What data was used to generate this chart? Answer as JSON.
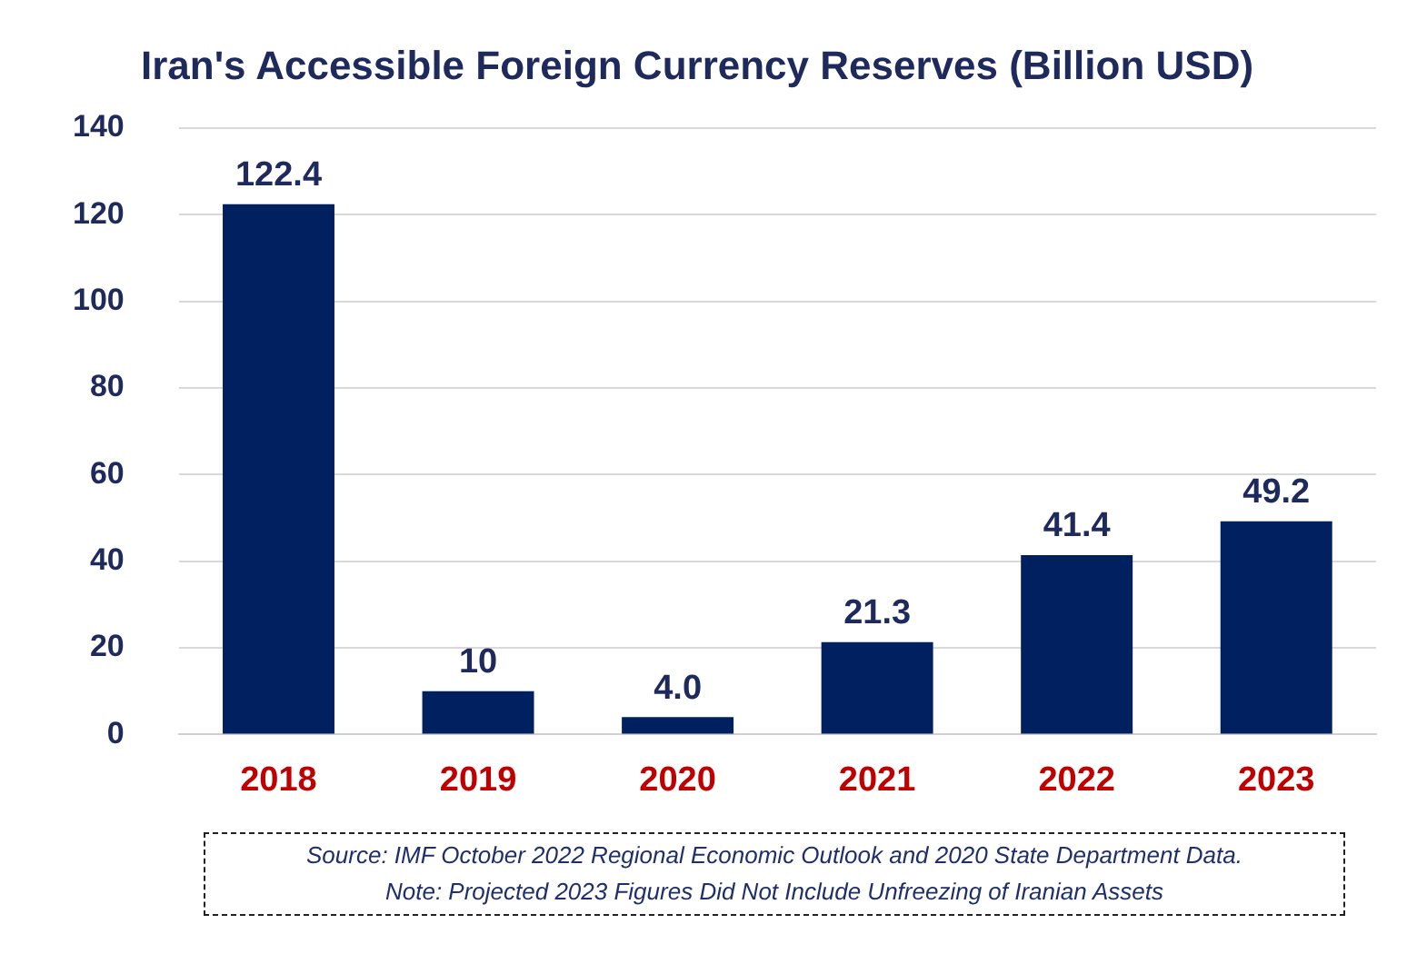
{
  "chart_data": {
    "type": "bar",
    "title": "Iran's Accessible Foreign Currency Reserves (Billion USD)",
    "categories": [
      "2018",
      "2019",
      "2020",
      "2021",
      "2022",
      "2023"
    ],
    "values": [
      122.4,
      10,
      4.0,
      21.3,
      41.4,
      49.2
    ],
    "value_labels": [
      "122.4",
      "10",
      "4.0",
      "21.3",
      "41.4",
      "49.2"
    ],
    "color": "#002060",
    "ylim": [
      0,
      140
    ],
    "yticks": [
      0,
      20,
      40,
      60,
      80,
      100,
      120,
      140
    ],
    "grid": "y",
    "legend": false,
    "annotations": [
      "Source: IMF October 2022 Regional Economic Outlook and 2020 State Department Data.",
      "Note: Projected 2023 Figures Did Not Include Unfreezing of Iranian Assets"
    ]
  }
}
